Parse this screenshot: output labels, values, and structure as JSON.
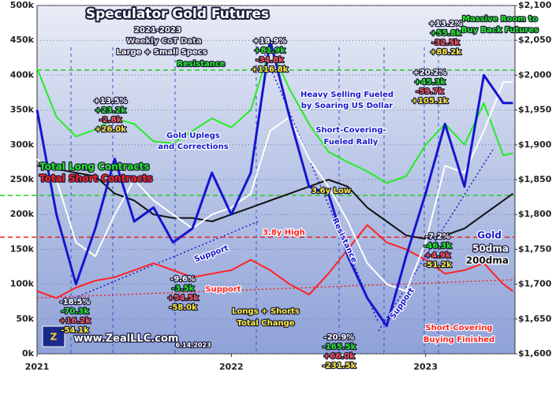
{
  "chart_data": {
    "type": "line",
    "title": "Speculator Gold Futures",
    "x": [
      2021.0,
      2021.1,
      2021.2,
      2021.3,
      2021.4,
      2021.5,
      2021.6,
      2021.7,
      2021.8,
      2021.9,
      2022.0,
      2022.1,
      2022.2,
      2022.3,
      2022.4,
      2022.5,
      2022.6,
      2022.7,
      2022.8,
      2022.9,
      2023.0,
      2023.1,
      2023.2,
      2023.3,
      2023.4,
      2023.45
    ],
    "xlim": [
      2021,
      2023.46
    ],
    "xticks": [
      2021,
      2022,
      2023
    ],
    "ylim": [
      0,
      500000
    ],
    "yticks": [
      {
        "value": 0,
        "label": "0k"
      },
      {
        "value": 50000,
        "label": "50k"
      },
      {
        "value": 100000,
        "label": "100k"
      },
      {
        "value": 150000,
        "label": "150k"
      },
      {
        "value": 200000,
        "label": "200k"
      },
      {
        "value": 250000,
        "label": "250k"
      },
      {
        "value": 300000,
        "label": "300k"
      },
      {
        "value": 350000,
        "label": "350k"
      },
      {
        "value": 400000,
        "label": "400k"
      },
      {
        "value": 450000,
        "label": "450k"
      },
      {
        "value": 500000,
        "label": "500k"
      }
    ],
    "y2lim": [
      1600,
      2100
    ],
    "y2ticks": [
      {
        "value": 1600,
        "label": "$1,600"
      },
      {
        "value": 1650,
        "label": "$1,650"
      },
      {
        "value": 1700,
        "label": "$1,700"
      },
      {
        "value": 1750,
        "label": "$1,750"
      },
      {
        "value": 1800,
        "label": "$1,800"
      },
      {
        "value": 1850,
        "label": "$1,850"
      },
      {
        "value": 1900,
        "label": "$1,900"
      },
      {
        "value": 1950,
        "label": "$1,950"
      },
      {
        "value": 2000,
        "label": "$2,000"
      },
      {
        "value": 2050,
        "label": "$2,050"
      },
      {
        "value": 2100,
        "label": "$2,100"
      }
    ],
    "grid": true,
    "series": [
      {
        "name": "Total Long Contracts",
        "color": "#22ee22",
        "values": [
          410000,
          340000,
          312000,
          322000,
          338000,
          330000,
          305000,
          302000,
          320000,
          338000,
          325000,
          350000,
          440000,
          380000,
          330000,
          290000,
          275000,
          262000,
          245000,
          255000,
          300000,
          330000,
          300000,
          360000,
          285000,
          288000
        ]
      },
      {
        "name": "Total Short Contracts",
        "color": "#ff2222",
        "values": [
          90000,
          80000,
          95000,
          105000,
          110000,
          120000,
          130000,
          120000,
          110000,
          115000,
          120000,
          135000,
          120000,
          100000,
          85000,
          115000,
          150000,
          185000,
          160000,
          150000,
          135000,
          115000,
          120000,
          130000,
          100000,
          90000
        ]
      },
      {
        "name": "200dma",
        "color": "#111111",
        "axis": "y2",
        "values": [
          1870,
          1865,
          1860,
          1855,
          1830,
          1820,
          1800,
          1795,
          1795,
          1790,
          1800,
          1810,
          1820,
          1830,
          1840,
          1850,
          1840,
          1810,
          1790,
          1770,
          1765,
          1770,
          1780,
          1800,
          1820,
          1830
        ]
      },
      {
        "name": "50dma",
        "color": "#ffffff",
        "axis": "y2",
        "values": [
          1880,
          1850,
          1760,
          1740,
          1800,
          1850,
          1820,
          1800,
          1780,
          1800,
          1810,
          1830,
          1920,
          1940,
          1880,
          1840,
          1790,
          1730,
          1700,
          1690,
          1760,
          1870,
          1860,
          1920,
          1990,
          1990
        ]
      },
      {
        "name": "Gold",
        "color": "#1515d0",
        "axis": "y2",
        "values": [
          1950,
          1800,
          1700,
          1780,
          1880,
          1790,
          1810,
          1760,
          1780,
          1860,
          1800,
          1860,
          2050,
          1940,
          1840,
          1830,
          1740,
          1680,
          1640,
          1740,
          1830,
          1930,
          1840,
          2000,
          1960,
          1960
        ]
      }
    ],
    "annotations": [
      "2021-2023",
      "Weekly CoT Data",
      "Large + Small Specs",
      "Resistance",
      "Massive Room to",
      "Buy Back Futures",
      "Gold Uplegs",
      "and Corrections",
      "Heavy Selling Fueled",
      "by Soaring US Dollar",
      "Short-Covering-",
      "Fueled Rally",
      "3.6y Low",
      "3.8y High",
      "Support",
      "Resistance",
      "Support",
      "Support",
      "Longs + Shorts",
      "Total Change",
      "Short-Covering",
      "Buying Finished",
      "www.ZealLLC.com",
      "6.14.2023"
    ],
    "callouts": [
      [
        "+13.5%",
        "+23.2k",
        "-2.8k",
        "+26.0k"
      ],
      [
        "-18.5%",
        "-70.3k",
        "+16.2k",
        "-54.1k"
      ],
      [
        "-9.6%",
        "-3.5k",
        "+54.5k",
        "-58.0k"
      ],
      [
        "+18.9%",
        "+81.9k",
        "-34.8k",
        "+116.8k"
      ],
      [
        "-20.9%",
        "-165.5k",
        "+66.0k",
        "-231.5k"
      ],
      [
        "+20.2%",
        "+45.3k",
        "-59.7k",
        "+105.1k"
      ],
      [
        "+13.2%",
        "+55.8k",
        "-32.5k",
        "+88.2k"
      ],
      [
        "-7.2%",
        "-46.3k",
        "+4.9k",
        "-51.2k"
      ]
    ]
  }
}
